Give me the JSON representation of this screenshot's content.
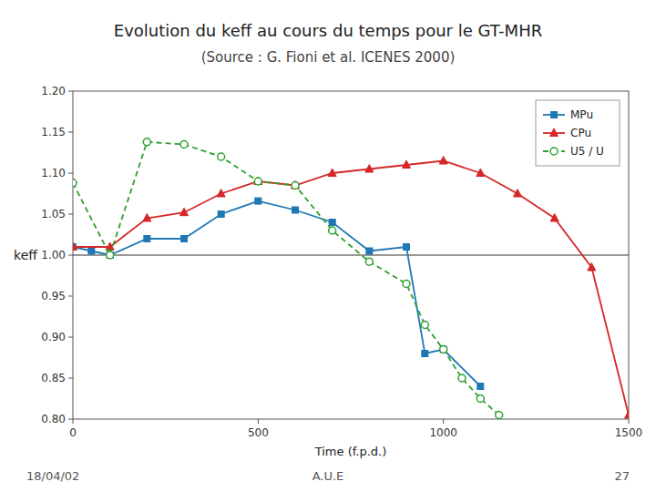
{
  "chart_data": {
    "type": "line",
    "title": "Evolution du keff au cours du temps pour le GT-MHR",
    "subtitle": "(Source : G. Fioni et al. ICENES 2000)",
    "xlabel": "Time (f.p.d.)",
    "ylabel": "keff",
    "xlim": [
      0,
      1500
    ],
    "ylim": [
      0.8,
      1.2
    ],
    "xticks": [
      0,
      500,
      1000,
      1500
    ],
    "yticks": [
      {
        "value": 0.8,
        "label": "0.80"
      },
      0.85,
      {
        "value": 0.9,
        "label": "0.90"
      },
      0.95,
      {
        "value": 1.0,
        "label": "1.00"
      },
      1.05,
      {
        "value": 1.1,
        "label": "1.10"
      },
      1.15,
      {
        "value": 1.2,
        "label": "1.20"
      }
    ],
    "grid": false,
    "legend": "upper right",
    "reference_lines": [
      1.0
    ],
    "series": [
      {
        "name": "MPu",
        "marker": "square",
        "line_style": "solid",
        "x": [
          0,
          50,
          100,
          200,
          300,
          400,
          500,
          600,
          700,
          800,
          900,
          950,
          1000,
          1100
        ],
        "values": [
          1.01,
          1.005,
          1.0,
          1.02,
          1.02,
          1.05,
          1.066,
          1.055,
          1.04,
          1.005,
          1.01,
          0.88,
          0.885,
          0.84
        ]
      },
      {
        "name": "CPu",
        "marker": "triangle",
        "line_style": "solid",
        "x": [
          0,
          100,
          200,
          300,
          400,
          500,
          600,
          700,
          800,
          900,
          1000,
          1100,
          1200,
          1300,
          1400,
          1500
        ],
        "values": [
          1.01,
          1.01,
          1.045,
          1.052,
          1.075,
          1.09,
          1.085,
          1.1,
          1.105,
          1.11,
          1.115,
          1.1,
          1.075,
          1.045,
          0.985,
          0.805
        ]
      },
      {
        "name": "U5 / U",
        "marker": "circle",
        "line_style": "dashed",
        "x": [
          0,
          100,
          200,
          300,
          400,
          500,
          600,
          700,
          800,
          900,
          950,
          1000,
          1050,
          1100,
          1150
        ],
        "values": [
          1.088,
          1.0,
          1.138,
          1.135,
          1.12,
          1.09,
          1.085,
          1.03,
          0.992,
          0.965,
          0.915,
          0.885,
          0.85,
          0.825,
          0.805
        ]
      }
    ],
    "annotations": [
      "18/04/02",
      "A.U.E",
      "27"
    ]
  }
}
